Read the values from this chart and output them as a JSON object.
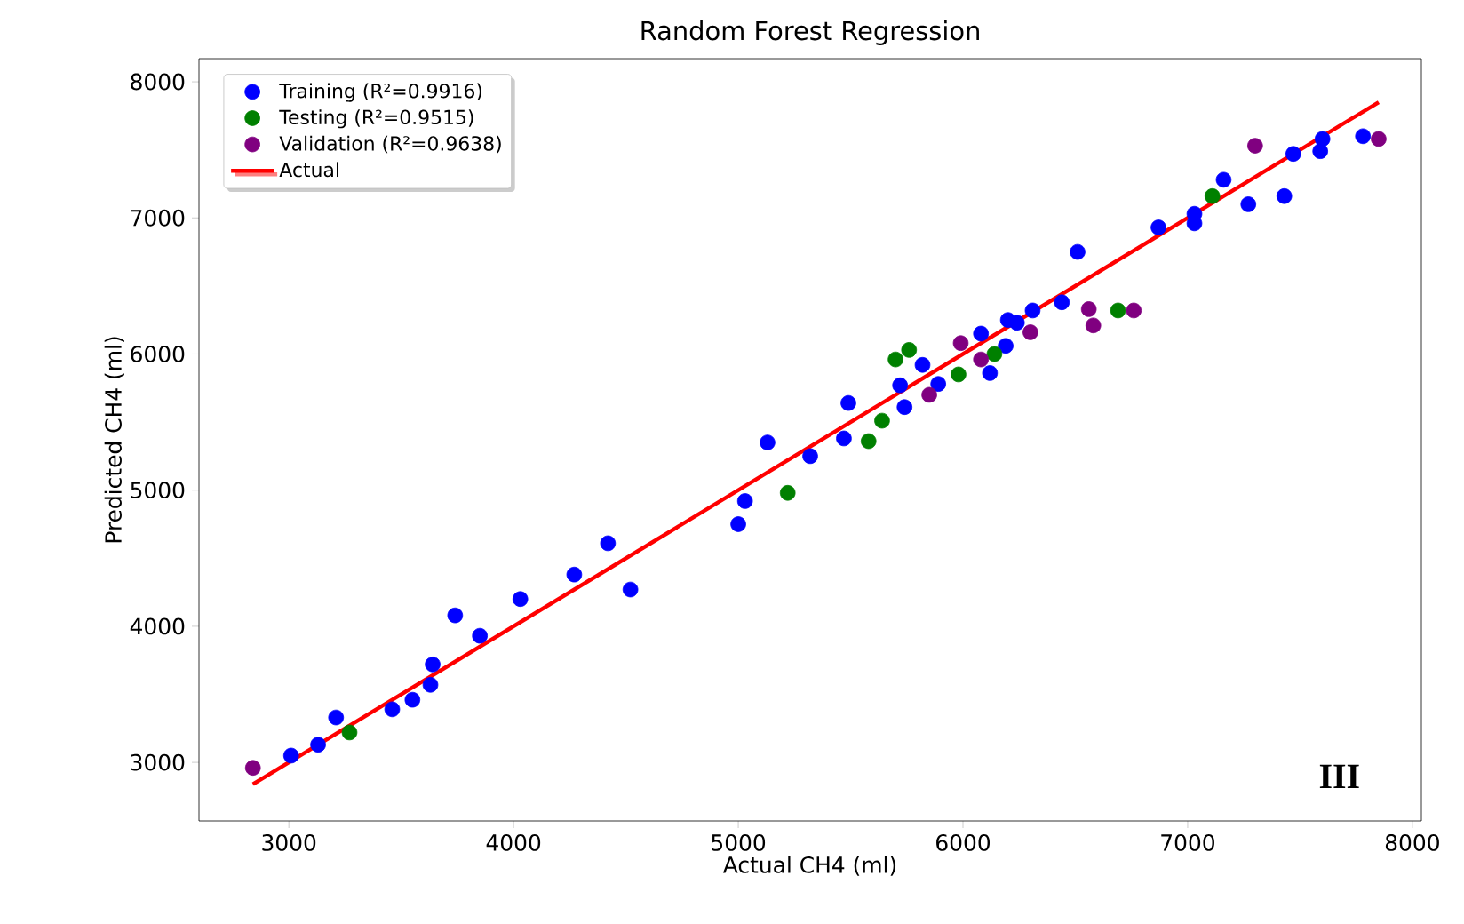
{
  "chart_data": {
    "type": "scatter",
    "title": "Random Forest Regression",
    "xlabel": "Actual CH4 (ml)",
    "ylabel": "Predicted CH4 (ml)",
    "xlim": [
      2600,
      8040
    ],
    "ylim": [
      2570,
      8170
    ],
    "xticks": [
      3000,
      4000,
      5000,
      6000,
      7000,
      8000
    ],
    "yticks": [
      3000,
      4000,
      5000,
      6000,
      7000,
      8000
    ],
    "legend": "top left",
    "annotations": [
      "III"
    ],
    "series": [
      {
        "name": "Training (R²=0.9916)",
        "color": "#0000ff",
        "marker": "circle",
        "x": [
          3010,
          3130,
          3210,
          3460,
          3550,
          3630,
          3640,
          3850,
          3740,
          4030,
          4270,
          4420,
          4520,
          5000,
          5030,
          5130,
          5320,
          5470,
          5490,
          5740,
          5720,
          5820,
          5890,
          6080,
          6120,
          6190,
          6240,
          6310,
          6440,
          6510,
          6870,
          7030,
          7030,
          7160,
          7270,
          7430,
          7470,
          7590,
          7600,
          7780,
          6200
        ],
        "values": [
          3050,
          3130,
          3330,
          3390,
          3460,
          3570,
          3720,
          3930,
          4080,
          4200,
          4380,
          4610,
          4270,
          4750,
          4920,
          5350,
          5250,
          5380,
          5640,
          5610,
          5770,
          5920,
          5780,
          6150,
          5860,
          6060,
          6230,
          6320,
          6380,
          6750,
          6930,
          7030,
          6960,
          7280,
          7100,
          7160,
          7470,
          7490,
          7580,
          7600,
          6250
        ]
      },
      {
        "name": "Testing (R²=0.9515)",
        "color": "#008000",
        "marker": "circle",
        "x": [
          3270,
          5220,
          5580,
          5640,
          5700,
          5760,
          5980,
          6140,
          6690,
          7110
        ],
        "values": [
          3220,
          4980,
          5360,
          5510,
          5960,
          6030,
          5850,
          6000,
          6320,
          7160
        ]
      },
      {
        "name": "Validation (R²=0.9638)",
        "color": "#800080",
        "marker": "circle",
        "x": [
          2840,
          5990,
          6080,
          5850,
          6300,
          6560,
          6580,
          6760,
          7300,
          7850
        ],
        "values": [
          2960,
          6080,
          5960,
          5700,
          6160,
          6330,
          6210,
          6320,
          7530,
          7580
        ]
      },
      {
        "name": "Actual",
        "type": "line",
        "color": "#ff0000",
        "line_style": "solid",
        "marker": "none",
        "x": [
          2840,
          7850
        ],
        "values": [
          2840,
          7850
        ]
      }
    ]
  }
}
